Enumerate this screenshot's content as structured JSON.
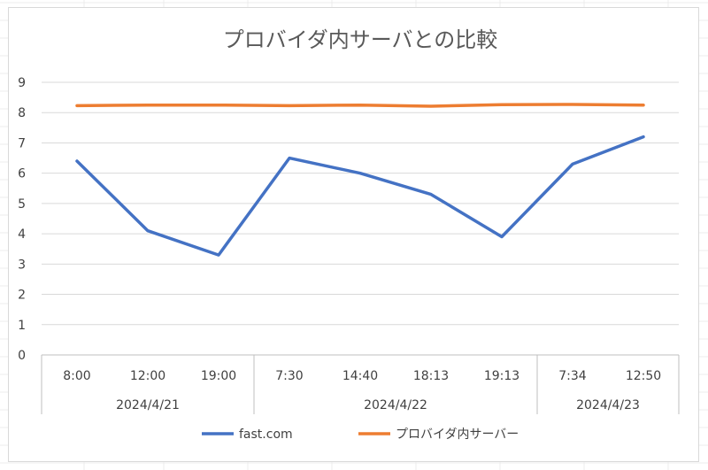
{
  "chart_data": {
    "type": "line",
    "title": "プロバイダ内サーバとの比較",
    "ylim": [
      0,
      9
    ],
    "yticks": [
      0,
      1,
      2,
      3,
      4,
      5,
      6,
      7,
      8,
      9
    ],
    "grid": true,
    "legend_position": "bottom",
    "categories": [
      "8:00",
      "12:00",
      "19:00",
      "7:30",
      "14:40",
      "18:13",
      "19:13",
      "7:34",
      "12:50"
    ],
    "groups": [
      {
        "label": "2024/4/21",
        "count": 3
      },
      {
        "label": "2024/4/22",
        "count": 4
      },
      {
        "label": "2024/4/23",
        "count": 2
      }
    ],
    "series": [
      {
        "name": "fast.com",
        "color": "#4472c4",
        "values": [
          6.4,
          4.1,
          3.3,
          6.5,
          6.0,
          5.3,
          3.9,
          6.3,
          7.2
        ]
      },
      {
        "name": "プロバイダ内サーバー",
        "color": "#ed7d31",
        "values": [
          8.23,
          8.25,
          8.25,
          8.23,
          8.25,
          8.21,
          8.26,
          8.27,
          8.25
        ]
      }
    ]
  }
}
